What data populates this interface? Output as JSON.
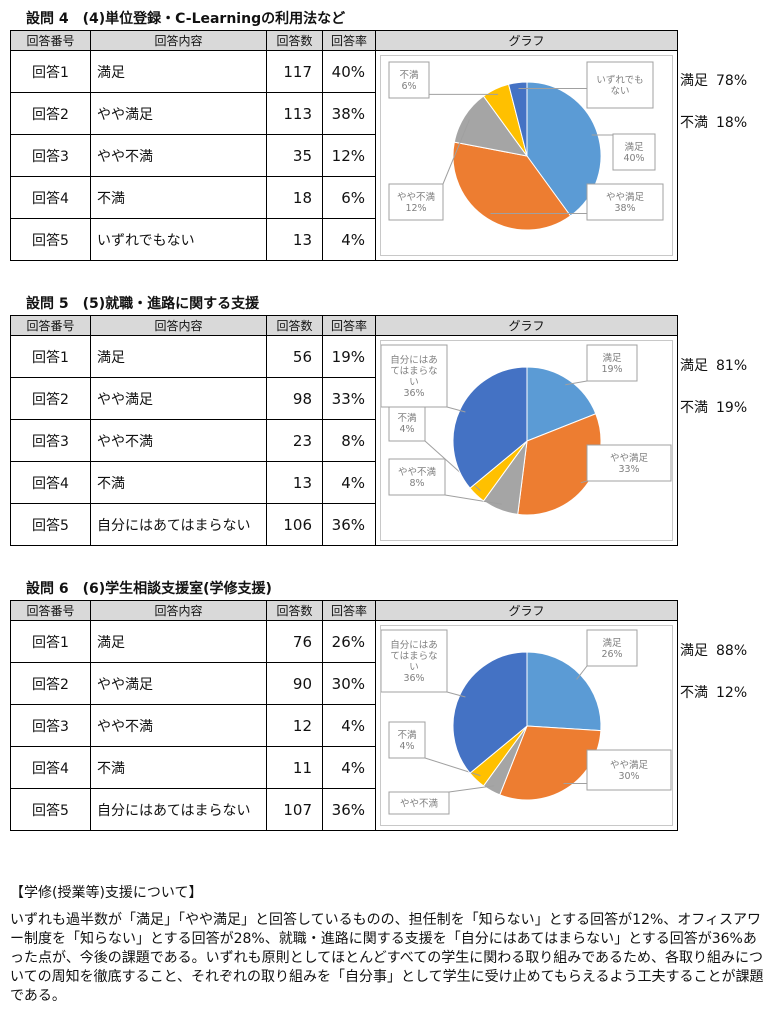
{
  "columns": [
    "回答番号",
    "回答内容",
    "回答数",
    "回答率",
    "グラフ"
  ],
  "colors": {
    "manzoku": "#5b9bd5",
    "yaya_manzoku": "#ed7d31",
    "yaya_fuman": "#a5a5a5",
    "fuman": "#ffc000",
    "other": "#4472c4"
  },
  "questions": [
    {
      "number": "設問 4",
      "title": "(4)単位登録・C-Learningの利用法など",
      "rows": [
        {
          "id": "回答1",
          "content": "満足",
          "count": "117",
          "rate": "40%"
        },
        {
          "id": "回答2",
          "content": "やや満足",
          "count": "113",
          "rate": "38%"
        },
        {
          "id": "回答3",
          "content": "やや不満",
          "count": "35",
          "rate": "12%"
        },
        {
          "id": "回答4",
          "content": "不満",
          "count": "18",
          "rate": "6%"
        },
        {
          "id": "回答5",
          "content": "いずれでもない",
          "count": "13",
          "rate": "4%"
        }
      ],
      "summary": {
        "satisfied_label": "満足",
        "satisfied_value": "78%",
        "unsatisfied_label": "不満",
        "unsatisfied_value": "18%"
      }
    },
    {
      "number": "設問 5",
      "title": "(5)就職・進路に関する支援",
      "rows": [
        {
          "id": "回答1",
          "content": "満足",
          "count": "56",
          "rate": "19%"
        },
        {
          "id": "回答2",
          "content": "やや満足",
          "count": "98",
          "rate": "33%"
        },
        {
          "id": "回答3",
          "content": "やや不満",
          "count": "23",
          "rate": "8%"
        },
        {
          "id": "回答4",
          "content": "不満",
          "count": "13",
          "rate": "4%"
        },
        {
          "id": "回答5",
          "content": "自分にはあてはまらない",
          "count": "106",
          "rate": "36%"
        }
      ],
      "summary": {
        "satisfied_label": "満足",
        "satisfied_value": "81%",
        "unsatisfied_label": "不満",
        "unsatisfied_value": "19%"
      }
    },
    {
      "number": "設問 6",
      "title": "(6)学生相談支援室(学修支援)",
      "rows": [
        {
          "id": "回答1",
          "content": "満足",
          "count": "76",
          "rate": "26%"
        },
        {
          "id": "回答2",
          "content": "やや満足",
          "count": "90",
          "rate": "30%"
        },
        {
          "id": "回答3",
          "content": "やや不満",
          "count": "12",
          "rate": "4%"
        },
        {
          "id": "回答4",
          "content": "不満",
          "count": "11",
          "rate": "4%"
        },
        {
          "id": "回答5",
          "content": "自分にはあてはまらない",
          "count": "107",
          "rate": "36%"
        }
      ],
      "summary": {
        "satisfied_label": "満足",
        "satisfied_value": "88%",
        "unsatisfied_label": "不満",
        "unsatisfied_value": "12%"
      }
    }
  ],
  "chart_data": [
    {
      "type": "pie",
      "slices": [
        {
          "label": "満足",
          "value": 40,
          "data_label": "40%"
        },
        {
          "label": "やや満足",
          "value": 38,
          "data_label": "38%"
        },
        {
          "label": "やや不満",
          "value": 12,
          "data_label": "12%"
        },
        {
          "label": "不満",
          "value": 6,
          "data_label": "6%"
        },
        {
          "label": "いずれでもない",
          "value": 4,
          "data_label": ""
        }
      ]
    },
    {
      "type": "pie",
      "slices": [
        {
          "label": "満足",
          "value": 19,
          "data_label": "19%"
        },
        {
          "label": "やや満足",
          "value": 33,
          "data_label": "33%"
        },
        {
          "label": "やや不満",
          "value": 8,
          "data_label": "8%"
        },
        {
          "label": "不満",
          "value": 4,
          "data_label": "4%"
        },
        {
          "label": "自分にはあてはまらない",
          "value": 36,
          "data_label": "36%"
        }
      ]
    },
    {
      "type": "pie",
      "slices": [
        {
          "label": "満足",
          "value": 26,
          "data_label": "26%"
        },
        {
          "label": "やや満足",
          "value": 30,
          "data_label": "30%"
        },
        {
          "label": "やや不満",
          "value": 4,
          "data_label": ""
        },
        {
          "label": "不満",
          "value": 4,
          "data_label": "4%"
        },
        {
          "label": "自分にはあてはまらない",
          "value": 36,
          "data_label": "36%"
        }
      ]
    }
  ],
  "note": {
    "heading": "【学修(授業等)支援について】",
    "body": "いずれも過半数が「満足」「やや満足」と回答しているものの、担任制を「知らない」とする回答が12%、オフィスアワー制度を「知らない」とする回答が28%、就職・進路に関する支援を「自分にはあてはまらない」とする回答が36%あった点が、今後の課題である。いずれも原則としてほとんどすべての学生に関わる取り組みであるため、各取り組みについての周知を徹底すること、それぞれの取り組みを「自分事」として学生に受け止めてもらえるよう工夫することが課題である。"
  }
}
